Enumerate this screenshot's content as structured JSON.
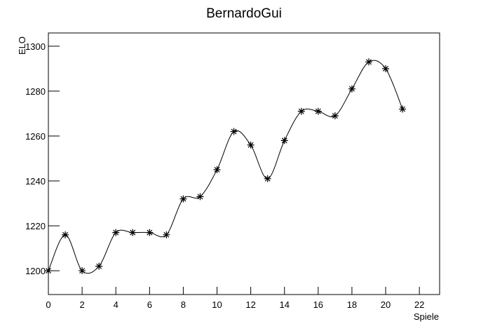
{
  "chart_data": {
    "type": "line",
    "title": "BernardoGui",
    "x_label": "Spiele",
    "y_label": "ELO",
    "x": [
      0,
      1,
      2,
      3,
      4,
      5,
      6,
      7,
      8,
      9,
      10,
      11,
      12,
      13,
      14,
      15,
      16,
      17,
      18,
      19,
      20,
      21
    ],
    "values": [
      1200,
      1216,
      1200,
      1202,
      1217,
      1217,
      1217,
      1216,
      1232,
      1233,
      1245,
      1262,
      1256,
      1241,
      1258,
      1271,
      1271,
      1269,
      1281,
      1293,
      1290,
      1272
    ],
    "color": "#000000",
    "smooth": true,
    "marker": "star",
    "xlim": [
      0,
      23.2
    ],
    "ylim": [
      1189.4,
      1305.9
    ],
    "xticks": [
      0,
      2,
      4,
      6,
      8,
      10,
      12,
      14,
      16,
      18,
      20,
      22
    ],
    "yticks": [
      1200,
      1220,
      1240,
      1260,
      1280,
      1300
    ]
  }
}
